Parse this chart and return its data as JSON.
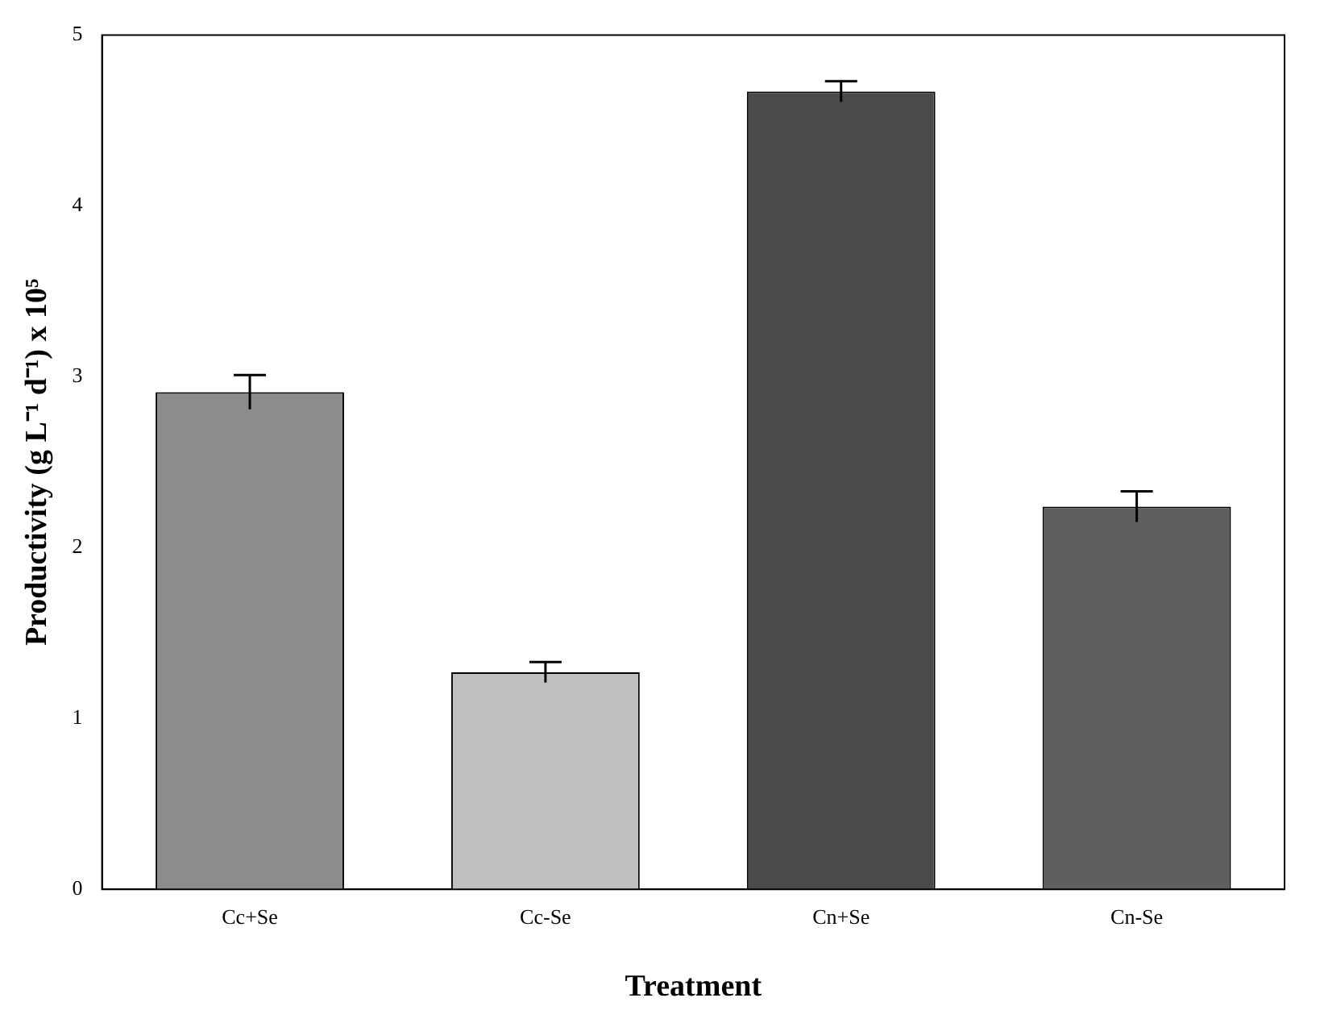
{
  "chart_data": {
    "type": "bar",
    "xlabel": "Treatment",
    "ylabel": "Productivity (g L⁻¹ d⁻¹) x 10⁵",
    "categories": [
      "Cc+Se",
      "Cc-Se",
      "Cn+Se",
      "Cn-Se"
    ],
    "values": [
      2.91,
      1.27,
      4.67,
      2.24
    ],
    "errors": [
      0.1,
      0.06,
      0.06,
      0.09
    ],
    "colors": [
      "#8c8c8c",
      "#c0c0c0",
      "#4a4a4a",
      "#5f5f5f"
    ],
    "ylim": [
      0,
      5
    ],
    "yticks": [
      0,
      1,
      2,
      3,
      4,
      5
    ],
    "grid": false,
    "legend": false
  }
}
